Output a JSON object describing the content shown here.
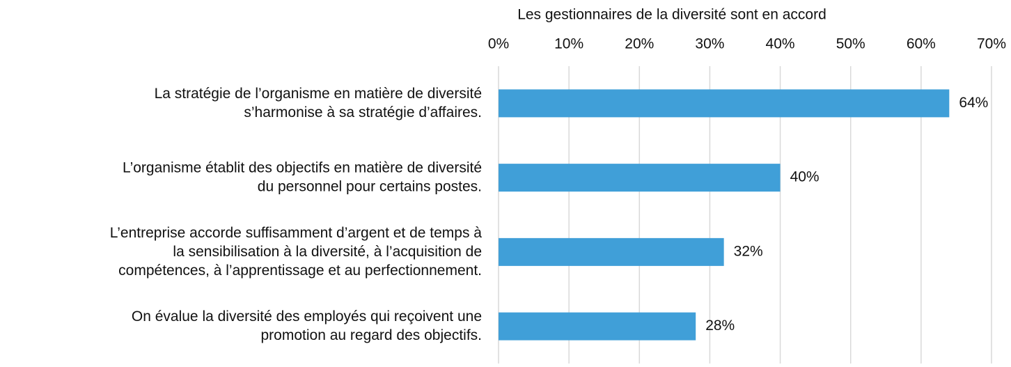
{
  "chart_data": {
    "type": "bar",
    "orientation": "horizontal",
    "title": "Les gestionnaires de la diversité sont en accord",
    "categories": [
      "La stratégie de l’organisme en matière de diversité\ns’harmonise à sa stratégie d’affaires.",
      "L’organisme établit des objectifs en matière de diversité\ndu personnel pour certains postes.",
      "L’entreprise accorde suffisamment d’argent et de temps à\nla sensibilisation à la diversité, à l’acquisition de\ncompétences, à l’apprentissage et au perfectionnement.",
      "On évalue la diversité des employés qui reçoivent une\npromotion au regard des objectifs."
    ],
    "values": [
      64,
      40,
      32,
      28
    ],
    "value_labels": [
      "64%",
      "40%",
      "32%",
      "28%"
    ],
    "color": "#409fd8",
    "xlim": [
      0,
      70
    ],
    "xticks": [
      {
        "value": 0,
        "label": "0%"
      },
      {
        "value": 10,
        "label": "10%"
      },
      {
        "value": 20,
        "label": "20%"
      },
      {
        "value": 30,
        "label": "30%"
      },
      {
        "value": 40,
        "label": "40%"
      },
      {
        "value": 50,
        "label": "50%"
      },
      {
        "value": 60,
        "label": "60%"
      },
      {
        "value": 70,
        "label": "70%"
      }
    ],
    "grid": true
  }
}
